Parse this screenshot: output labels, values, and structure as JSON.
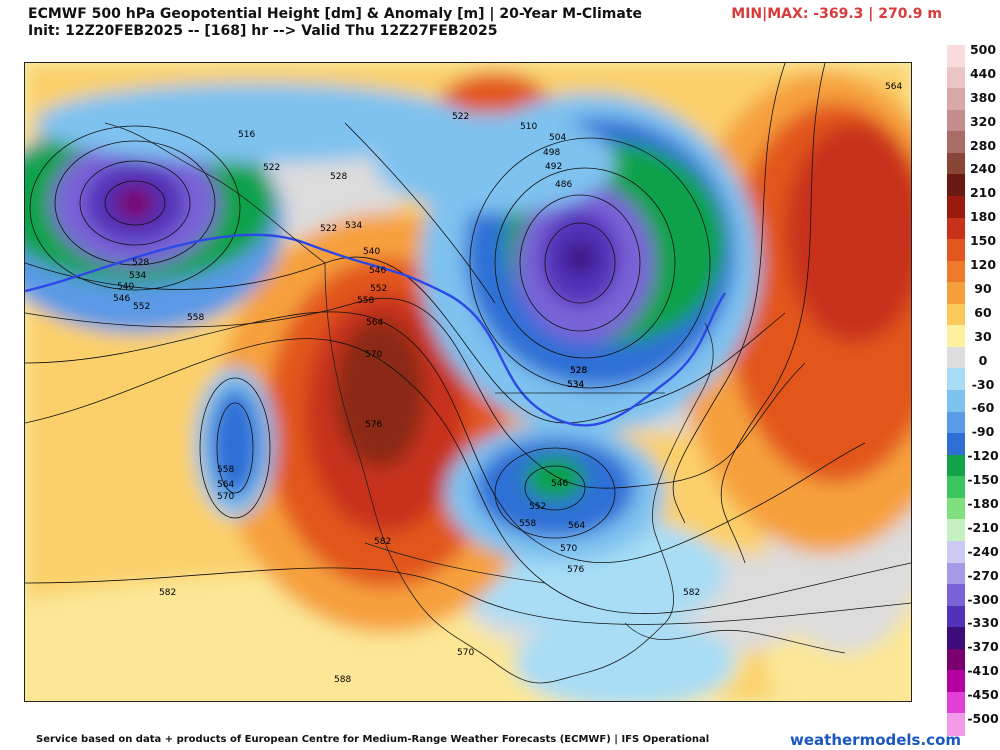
{
  "header": {
    "title_line1": "ECMWF 500 hPa Geopotential Height [dm] & Anomaly [m] | 20-Year M-Climate",
    "title_line2": "Init: 12Z20FEB2025 -- [168] hr --> Valid Thu 12Z27FEB2025",
    "minmax": "MIN|MAX: -369.3 | 270.9 m"
  },
  "colorbar": {
    "labels": [
      "500",
      "440",
      "380",
      "320",
      "280",
      "240",
      "210",
      "180",
      "150",
      "120",
      "90",
      "60",
      "30",
      "0",
      "-30",
      "-60",
      "-90",
      "-120",
      "-150",
      "-180",
      "-210",
      "-240",
      "-270",
      "-300",
      "-330",
      "-370",
      "-410",
      "-450",
      "-500"
    ],
    "colors": [
      "#f9dcdc",
      "#ecc6c6",
      "#d9a9a9",
      "#c58e8e",
      "#a96c67",
      "#874636",
      "#6b1a12",
      "#9a1a10",
      "#c8321a",
      "#e2561f",
      "#f07a2c",
      "#f6a03c",
      "#fbc95a",
      "#fdf1a0",
      "#dedede",
      "#a8ddf5",
      "#7ec2f0",
      "#5a9ae6",
      "#2e6fd6",
      "#11a24a",
      "#3cc460",
      "#80e07e",
      "#c5f1c0",
      "#cccbf3",
      "#a59be9",
      "#7a63d8",
      "#5132b8",
      "#3a0d7a",
      "#7a0070",
      "#b4009e",
      "#e23fd6",
      "#f39ae9"
    ]
  },
  "map": {
    "contour_labels": [
      "516",
      "522",
      "522",
      "528",
      "534",
      "540",
      "528",
      "534",
      "540",
      "546",
      "552",
      "558",
      "522",
      "510",
      "504",
      "498",
      "492",
      "486",
      "528",
      "534",
      "546",
      "552",
      "558",
      "564",
      "570",
      "576",
      "558",
      "564",
      "570",
      "582",
      "582",
      "528",
      "534",
      "546",
      "552",
      "558",
      "564",
      "570",
      "576",
      "582",
      "588",
      "570",
      "564"
    ],
    "features": {
      "contour_line_color": "#111111",
      "border_line_color": "#222222",
      "highlight_contour_540_color": "#2c49e6"
    }
  },
  "footer": {
    "credit": "Service based on data + products of European Centre for Medium-Range Weather Forecasts (ECMWF) | IFS Operational",
    "brand": "weathermodels.com"
  }
}
